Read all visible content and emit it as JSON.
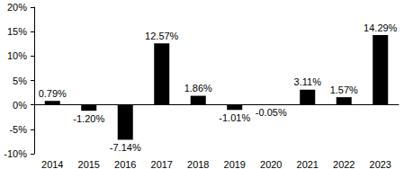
{
  "chart_data": {
    "type": "bar",
    "categories": [
      "2014",
      "2015",
      "2016",
      "2017",
      "2018",
      "2019",
      "2020",
      "2021",
      "2022",
      "2023"
    ],
    "values": [
      0.79,
      -1.2,
      -7.14,
      12.57,
      1.86,
      -1.01,
      -0.05,
      3.11,
      1.57,
      14.29
    ],
    "value_labels": [
      "0.79%",
      "-1.20%",
      "-7.14%",
      "12.57%",
      "1.86%",
      "-1.01%",
      "-0.05%",
      "3.11%",
      "1.57%",
      "14.29%"
    ],
    "color": "#000000",
    "ylim": [
      -10,
      20
    ],
    "yticks": [
      {
        "value": -10,
        "label": "-10%"
      },
      {
        "value": -5,
        "label": "-5%"
      },
      {
        "value": 0,
        "label": "0%"
      },
      {
        "value": 5,
        "label": "5%"
      },
      {
        "value": 10,
        "label": "10%"
      },
      {
        "value": 15,
        "label": "15%"
      },
      {
        "value": 20,
        "label": "20%"
      }
    ],
    "grid": false,
    "data_labels": true
  }
}
